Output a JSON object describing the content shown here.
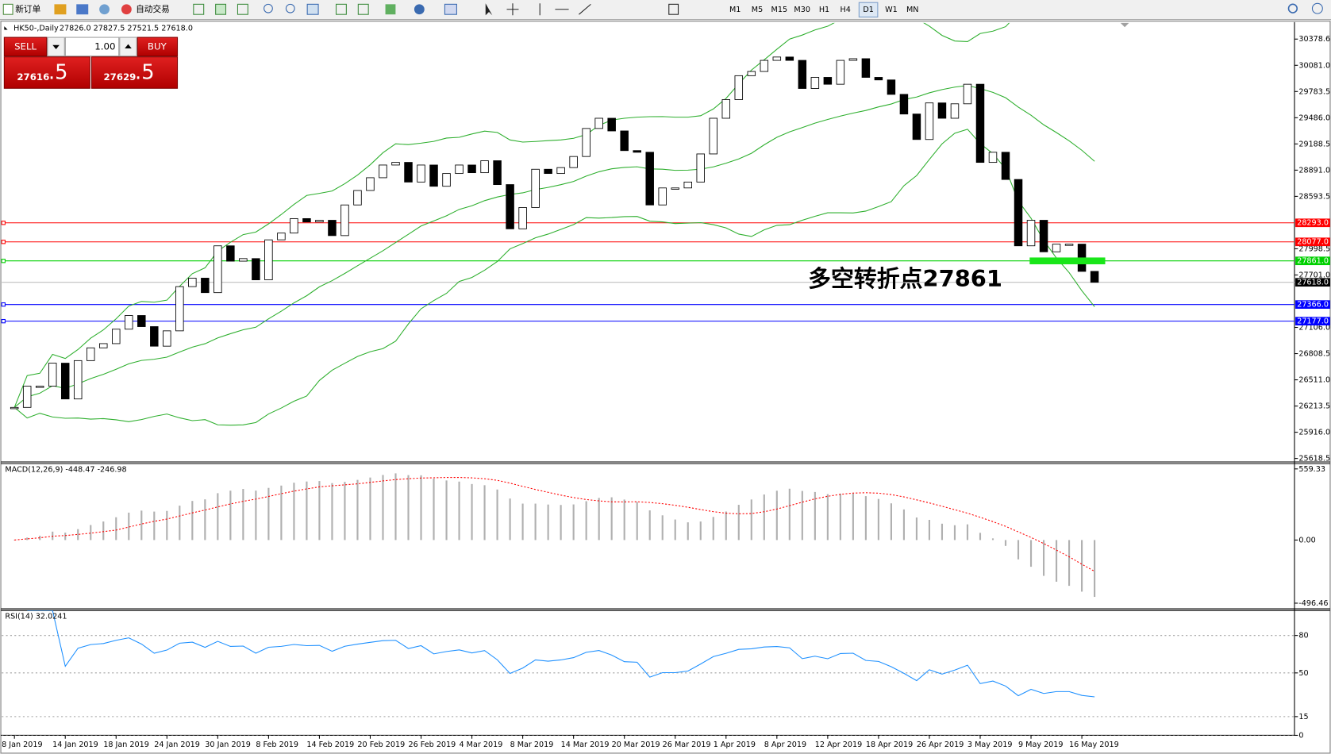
{
  "toolbar": {
    "new_order": "新订单",
    "auto_trading": "自动交易",
    "timeframes": [
      "M1",
      "M5",
      "M15",
      "M30",
      "H1",
      "H4",
      "D1",
      "W1",
      "MN"
    ],
    "active": "D1"
  },
  "trade_panel": {
    "sell": "SELL",
    "buy": "BUY",
    "lots": "1.00",
    "bid_main": "27616",
    "bid_frac": ".5",
    "ask_main": "27629",
    "ask_frac": ".5"
  },
  "chart": {
    "header": {
      "symbol": "HK50-,Daily",
      "ohlc": "27826.0 27827.5 27521.5 27618.0"
    },
    "ylim": [
      25589,
      30562
    ],
    "yticks": [
      {
        "value": 30378.6,
        "label": "30378.6"
      },
      {
        "value": 30081,
        "label": "30081.0"
      },
      {
        "value": 29783.5,
        "label": "29783.5"
      },
      {
        "value": 29486,
        "label": "29486.0"
      },
      {
        "value": 29188.5,
        "label": "29188.5"
      },
      {
        "value": 28891,
        "label": "28891.0"
      },
      {
        "value": 28593.5,
        "label": "28593.5"
      },
      {
        "value": 27998.5,
        "label": "27998.5"
      },
      {
        "value": 27701,
        "label": "27701.0"
      },
      {
        "value": 27106,
        "label": "27106.0"
      },
      {
        "value": 26808.5,
        "label": "26808.5"
      },
      {
        "value": 26511,
        "label": "26511.0"
      },
      {
        "value": 26213.5,
        "label": "26213.5"
      },
      {
        "value": 25916,
        "label": "25916.0"
      },
      {
        "value": 25618.5,
        "label": "25618.5"
      }
    ],
    "levels": [
      {
        "value": 28293,
        "label": "28293.0",
        "color": "#ff0000"
      },
      {
        "value": 28077,
        "label": "28077.0",
        "color": "#ff0000"
      },
      {
        "value": 27861,
        "label": "27861.0",
        "color": "#00d000"
      },
      {
        "value": 27366,
        "label": "27366.0",
        "color": "#0000ff"
      },
      {
        "value": 27177,
        "label": "27177.0",
        "color": "#0000ff"
      }
    ],
    "current": {
      "value": 27618,
      "label": "27618.0",
      "color": "#000000"
    },
    "marker_color": "#19e619",
    "annotation": "多空转折点27861",
    "closes": [
      26198,
      26439,
      26439,
      26700,
      26294,
      26729,
      26874,
      26922,
      27086,
      27241,
      27115,
      26893,
      27067,
      27569,
      27665,
      27501,
      28032,
      27858,
      27887,
      27646,
      28100,
      28177,
      28341,
      28303,
      28322,
      28148,
      28496,
      28660,
      28805,
      28949,
      28979,
      28756,
      28949,
      28708,
      28853,
      28949,
      28862,
      28998,
      28727,
      28225,
      28467,
      28901,
      28853,
      28920,
      29046,
      29364,
      29480,
      29336,
      29113,
      29094,
      28496,
      28689,
      28689,
      28756,
      29075,
      29480,
      29692,
      29963,
      30011,
      30137,
      30175,
      30137,
      29818,
      29944,
      29866,
      30137,
      30156,
      29944,
      29915,
      29751,
      29528,
      29239,
      29654,
      29480,
      29644,
      29866,
      28979,
      29094,
      28785,
      28032,
      28322,
      27964,
      28051,
      28051,
      27742,
      27618
    ],
    "band_color": "#2eaf2e",
    "macd": {
      "header": "MACD(12,26,9) -448.47 -246.98",
      "ylim": [
        -534,
        601
      ],
      "yticks": [
        559.33,
        {
          "value": 0,
          "label": "0.00"
        },
        -496.46
      ],
      "bar_color": "#b0b0b0",
      "signal_color": "#ff0000"
    },
    "rsi": {
      "header": "RSI(14) 32.0241",
      "ylim": [
        0,
        100
      ],
      "yticks": [
        80,
        50,
        15,
        0
      ],
      "color": "#1e90ff"
    },
    "dates": [
      "8 Jan 2019",
      "14 Jan 2019",
      "18 Jan 2019",
      "24 Jan 2019",
      "30 Jan 2019",
      "8 Feb 2019",
      "14 Feb 2019",
      "20 Feb 2019",
      "26 Feb 2019",
      "4 Mar 2019",
      "8 Mar 2019",
      "14 Mar 2019",
      "20 Mar 2019",
      "26 Mar 2019",
      "1 Apr 2019",
      "8 Apr 2019",
      "12 Apr 2019",
      "18 Apr 2019",
      "26 Apr 2019",
      "3 May 2019",
      "9 May 2019",
      "16 May 2019"
    ]
  }
}
